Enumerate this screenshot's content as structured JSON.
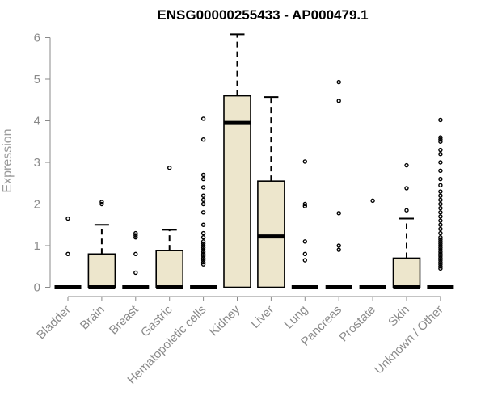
{
  "chart_data": {
    "type": "boxplot",
    "title": "ENSG00000255433 - AP000479.1",
    "xlabel": "",
    "ylabel": "Expression",
    "ylim": [
      0,
      6
    ],
    "yticks": [
      "0",
      "1",
      "2",
      "3",
      "4",
      "5",
      "6"
    ],
    "grid": false,
    "box_fill": "#ede6cc",
    "categories": [
      "Bladder",
      "Brain",
      "Breast",
      "Gastric",
      "Hematopoietic cells",
      "Kidney",
      "Liver",
      "Lung",
      "Pancreas",
      "Prostate",
      "Skin",
      "Unknown / Other"
    ],
    "boxes": [
      {
        "q1": 0,
        "median": 0,
        "q3": 0,
        "whisker_low": 0,
        "whisker_high": 0,
        "outliers": [
          0.8,
          1.65
        ]
      },
      {
        "q1": 0,
        "median": 0,
        "q3": 0.8,
        "whisker_low": 0,
        "whisker_high": 1.5,
        "outliers": [
          2.0,
          2.05
        ]
      },
      {
        "q1": 0,
        "median": 0,
        "q3": 0,
        "whisker_low": 0,
        "whisker_high": 0,
        "outliers": [
          0.35,
          0.8,
          1.2,
          1.25,
          1.3
        ]
      },
      {
        "q1": 0,
        "median": 0,
        "q3": 0.88,
        "whisker_low": 0,
        "whisker_high": 1.38,
        "outliers": [
          2.87
        ]
      },
      {
        "q1": 0,
        "median": 0,
        "q3": 0,
        "whisker_low": 0,
        "whisker_high": 0,
        "outliers": [
          0.55,
          0.6,
          0.65,
          0.7,
          0.75,
          0.8,
          0.85,
          0.9,
          0.95,
          1.0,
          1.05,
          1.1,
          1.2,
          1.3,
          1.5,
          1.8,
          2.0,
          2.1,
          2.2,
          2.4,
          2.6,
          2.7,
          3.55,
          4.05
        ]
      },
      {
        "q1": 0,
        "median": 3.95,
        "q3": 4.6,
        "whisker_low": 0,
        "whisker_high": 6.08,
        "outliers": []
      },
      {
        "q1": 0,
        "median": 1.22,
        "q3": 2.55,
        "whisker_low": 0,
        "whisker_high": 4.57,
        "outliers": []
      },
      {
        "q1": 0,
        "median": 0,
        "q3": 0,
        "whisker_low": 0,
        "whisker_high": 0,
        "outliers": [
          0.65,
          0.8,
          1.1,
          1.95,
          2.0,
          3.02
        ]
      },
      {
        "q1": 0,
        "median": 0,
        "q3": 0,
        "whisker_low": 0,
        "whisker_high": 0,
        "outliers": [
          0.9,
          1.0,
          1.78,
          4.48,
          4.93
        ]
      },
      {
        "q1": 0,
        "median": 0,
        "q3": 0,
        "whisker_low": 0,
        "whisker_high": 0,
        "outliers": [
          2.08
        ]
      },
      {
        "q1": 0,
        "median": 0,
        "q3": 0.7,
        "whisker_low": 0,
        "whisker_high": 1.65,
        "outliers": [
          1.85,
          2.38,
          2.93
        ]
      },
      {
        "q1": 0,
        "median": 0,
        "q3": 0,
        "whisker_low": 0,
        "whisker_high": 0,
        "outliers": [
          0.45,
          0.5,
          0.55,
          0.6,
          0.65,
          0.7,
          0.75,
          0.8,
          0.85,
          0.9,
          0.95,
          1.0,
          1.05,
          1.1,
          1.15,
          1.2,
          1.3,
          1.4,
          1.5,
          1.6,
          1.7,
          1.8,
          1.9,
          2.0,
          2.1,
          2.2,
          2.3,
          2.45,
          2.6,
          2.8,
          3.0,
          3.2,
          3.3,
          3.5,
          3.55,
          3.6,
          4.02
        ]
      }
    ]
  }
}
